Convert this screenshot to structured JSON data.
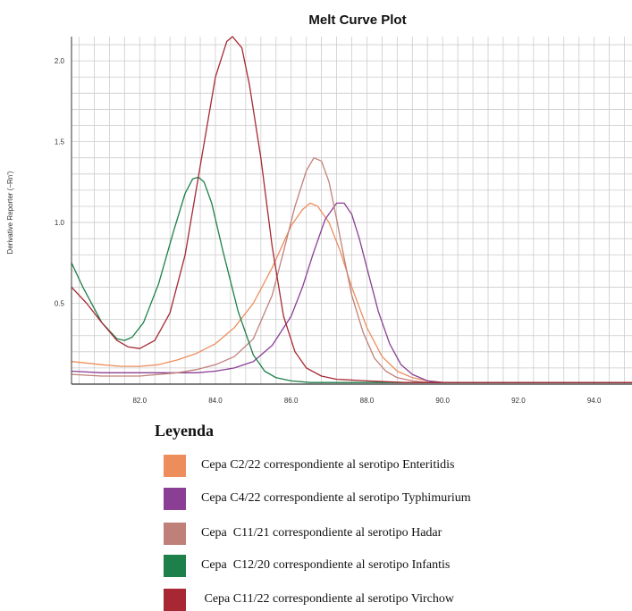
{
  "chart_data": {
    "type": "line",
    "title": "Melt Curve Plot",
    "ylabel": "Derivative Reporter (−Rn')",
    "xlabel": "",
    "xlim": [
      80.2,
      95.0
    ],
    "ylim": [
      0,
      2.15
    ],
    "xticks": [
      82.0,
      84.0,
      86.0,
      88.0,
      90.0,
      92.0,
      94.0
    ],
    "xtick_labels": [
      "82.0",
      "84.0",
      "86.0",
      "88.0",
      "90.0",
      "92.0",
      "94.0"
    ],
    "yticks": [
      0.5,
      1.0,
      1.5,
      2.0
    ],
    "ytick_labels": [
      "0.5",
      "1.0",
      "1.5",
      "2.0"
    ],
    "grid": true,
    "series": [
      {
        "name": "Cepa C2/22 correspondiente al serotipo Enteritidis",
        "color": "#ee8d5c",
        "x": [
          80.2,
          81.0,
          81.5,
          82.0,
          82.5,
          83.0,
          83.5,
          84.0,
          84.5,
          85.0,
          85.5,
          86.0,
          86.3,
          86.5,
          86.7,
          87.0,
          87.3,
          87.6,
          88.0,
          88.4,
          88.8,
          89.2,
          89.6,
          90.0,
          92.0,
          95.0
        ],
        "y": [
          0.14,
          0.12,
          0.11,
          0.11,
          0.12,
          0.15,
          0.19,
          0.25,
          0.35,
          0.5,
          0.72,
          0.98,
          1.08,
          1.12,
          1.1,
          1.0,
          0.82,
          0.6,
          0.35,
          0.17,
          0.08,
          0.04,
          0.02,
          0.01,
          0.01,
          0.01
        ]
      },
      {
        "name": "Cepa C4/22 correspondiente al serotipo Typhimurium",
        "color": "#8a3f94",
        "x": [
          80.2,
          81.0,
          82.0,
          83.0,
          83.5,
          84.0,
          84.5,
          85.0,
          85.5,
          86.0,
          86.3,
          86.6,
          86.9,
          87.2,
          87.4,
          87.6,
          87.8,
          88.0,
          88.3,
          88.6,
          88.9,
          89.2,
          89.6,
          90.0,
          92.0,
          95.0
        ],
        "y": [
          0.08,
          0.07,
          0.07,
          0.07,
          0.07,
          0.08,
          0.1,
          0.14,
          0.24,
          0.42,
          0.6,
          0.82,
          1.02,
          1.12,
          1.12,
          1.05,
          0.9,
          0.72,
          0.45,
          0.25,
          0.12,
          0.06,
          0.02,
          0.01,
          0.01,
          0.01
        ]
      },
      {
        "name": "Cepa C11/21 correspondiente al serotipo Hadar",
        "color": "#c0807a",
        "x": [
          80.2,
          81.0,
          82.0,
          83.0,
          83.5,
          84.0,
          84.5,
          85.0,
          85.5,
          85.8,
          86.1,
          86.4,
          86.6,
          86.8,
          87.0,
          87.2,
          87.4,
          87.6,
          87.9,
          88.2,
          88.5,
          88.8,
          89.2,
          89.6,
          90.0,
          92.0,
          95.0
        ],
        "y": [
          0.06,
          0.05,
          0.05,
          0.07,
          0.09,
          0.12,
          0.17,
          0.28,
          0.55,
          0.82,
          1.1,
          1.32,
          1.4,
          1.38,
          1.25,
          1.02,
          0.78,
          0.55,
          0.32,
          0.16,
          0.08,
          0.04,
          0.02,
          0.01,
          0.01,
          0.01,
          0.01
        ]
      },
      {
        "name": "Cepa C12/20 correspondiente al serotipo Infantis",
        "color": "#1d7f4a",
        "x": [
          80.2,
          80.5,
          81.0,
          81.4,
          81.6,
          81.8,
          82.1,
          82.5,
          82.9,
          83.2,
          83.4,
          83.55,
          83.7,
          83.9,
          84.2,
          84.6,
          85.0,
          85.3,
          85.6,
          86.0,
          86.5,
          87.0,
          88.0,
          90.0,
          92.0,
          95.0
        ],
        "y": [
          0.75,
          0.6,
          0.38,
          0.28,
          0.27,
          0.29,
          0.38,
          0.62,
          0.95,
          1.18,
          1.27,
          1.28,
          1.25,
          1.12,
          0.82,
          0.45,
          0.18,
          0.08,
          0.04,
          0.02,
          0.01,
          0.01,
          0.01,
          0.01,
          0.01,
          0.01
        ]
      },
      {
        "name": "Cepa C11/22 correspondiente al serotipo Virchow",
        "color": "#a72833",
        "x": [
          80.2,
          80.6,
          81.0,
          81.4,
          81.7,
          82.0,
          82.4,
          82.8,
          83.2,
          83.6,
          84.0,
          84.3,
          84.45,
          84.7,
          84.9,
          85.2,
          85.5,
          85.8,
          86.1,
          86.4,
          86.8,
          87.2,
          88.0,
          89.0,
          90.0,
          92.0,
          95.0
        ],
        "y": [
          0.6,
          0.5,
          0.38,
          0.27,
          0.23,
          0.22,
          0.27,
          0.44,
          0.8,
          1.35,
          1.9,
          2.12,
          2.15,
          2.08,
          1.85,
          1.4,
          0.85,
          0.42,
          0.2,
          0.1,
          0.05,
          0.03,
          0.02,
          0.01,
          0.01,
          0.01,
          0.01
        ]
      }
    ]
  },
  "legend": {
    "title": "Leyenda",
    "items": [
      {
        "label": "Cepa C2/22 correspondiente al serotipo Enteritidis",
        "color": "#ee8d5c"
      },
      {
        "label": "Cepa C4/22 correspondiente al serotipo Typhimurium",
        "color": "#8a3f94"
      },
      {
        "label": "Cepa  C11/21 correspondiente al serotipo Hadar",
        "color": "#c0807a"
      },
      {
        "label": "Cepa  C12/20 correspondiente al serotipo Infantis",
        "color": "#1d7f4a"
      },
      {
        "label": " Cepa C11/22 correspondiente al serotipo Virchow",
        "color": "#a72833"
      }
    ]
  }
}
